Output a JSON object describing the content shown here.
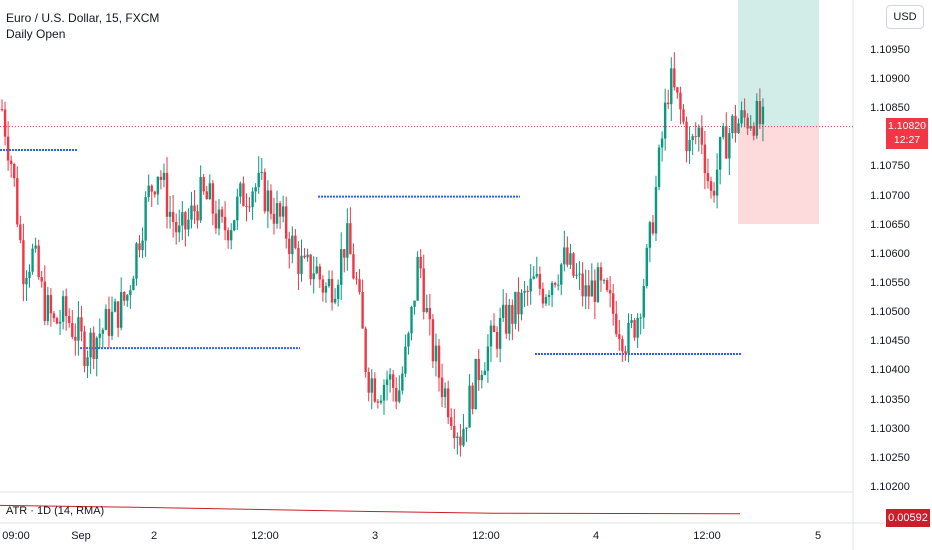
{
  "legend": {
    "symbol": "Euro / U.S. Dollar, 15, FXCM",
    "indicator": "Daily Open"
  },
  "currency_button": "USD",
  "price_axis": [
    "1.10950",
    "1.10900",
    "1.10850",
    "1.10750",
    "1.10700",
    "1.10650",
    "1.10600",
    "1.10550",
    "1.10500",
    "1.10450",
    "1.10400",
    "1.10350",
    "1.10300",
    "1.10250",
    "1.10200"
  ],
  "current_price": {
    "value": "1.10820",
    "countdown": "12:27"
  },
  "atr": {
    "label": "ATR · 1D (14, RMA)",
    "value": "0.00592"
  },
  "time_axis": [
    "09:00",
    "Sep",
    "2",
    "12:00",
    "3",
    "12:00",
    "4",
    "12:00",
    "5"
  ],
  "colors": {
    "up": "#089981",
    "down": "#f23645",
    "level": "#2962ff",
    "atr": "#cc1d2b"
  },
  "chart_data": {
    "type": "candlestick",
    "symbol": "EURUSD",
    "interval": "15",
    "ylim": [
      1.102,
      1.11
    ],
    "daily_open_levels": [
      1.1078,
      1.1044,
      1.107,
      1.1043
    ],
    "price_path_approx": [
      1.1085,
      1.1075,
      1.1058,
      1.106,
      1.1052,
      1.1048,
      1.105,
      1.1047,
      1.1044,
      1.1046,
      1.1048,
      1.105,
      1.1053,
      1.1062,
      1.107,
      1.1075,
      1.1068,
      1.1063,
      1.1066,
      1.107,
      1.1069,
      1.1064,
      1.1066,
      1.107,
      1.1072,
      1.1071,
      1.1068,
      1.1065,
      1.1061,
      1.1057,
      1.1058,
      1.1054,
      1.1056,
      1.1063,
      1.1055,
      1.104,
      1.1037,
      1.1039,
      1.1036,
      1.1045,
      1.106,
      1.1046,
      1.1039,
      1.1034,
      1.1029,
      1.1036,
      1.1042,
      1.1045,
      1.1048,
      1.105,
      1.1052,
      1.1055,
      1.1054,
      1.1057,
      1.1059,
      1.1056,
      1.1053,
      1.1055,
      1.1052,
      1.1049,
      1.1045,
      1.105,
      1.106,
      1.1075,
      1.109,
      1.1085,
      1.1078,
      1.1082,
      1.107,
      1.1078,
      1.1082,
      1.1083,
      1.1084,
      1.1082
    ],
    "atr_trend": [
      0.0064,
      0.0063,
      0.00618,
      0.00605,
      0.00595,
      0.00593,
      0.00592
    ]
  }
}
